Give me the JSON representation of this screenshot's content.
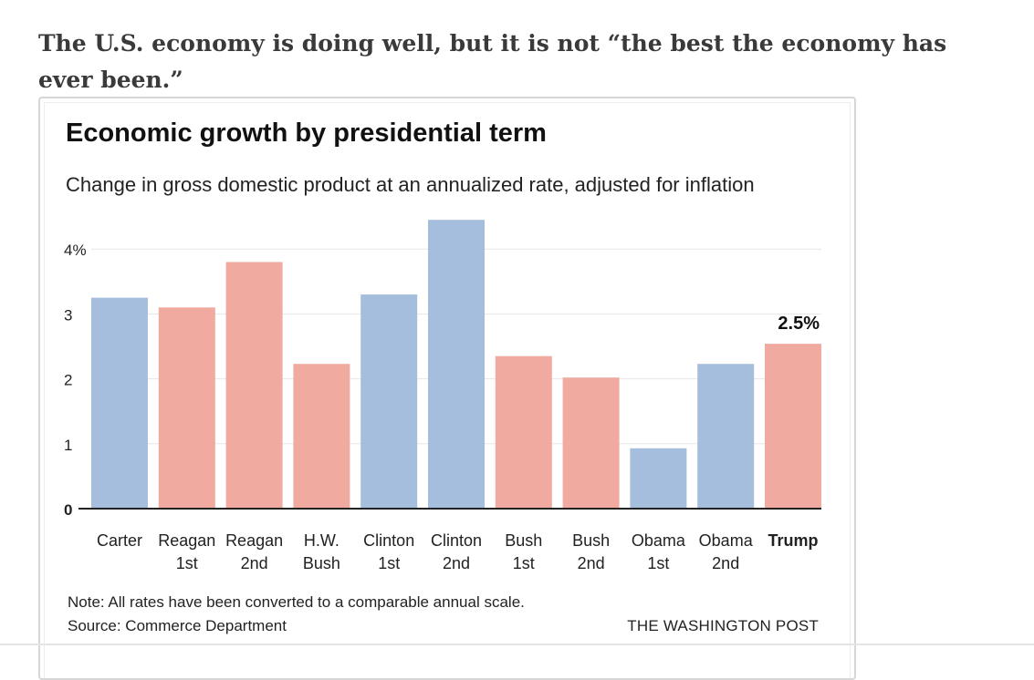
{
  "headline": "The U.S. economy is doing well, but it is not “the best the economy has ever been.”",
  "chart_data": {
    "type": "bar",
    "title": "Economic growth by presidential term",
    "subtitle": "Change in gross domestic product at an annualized rate, adjusted for inflation",
    "categories": [
      [
        "Carter"
      ],
      [
        "Reagan",
        "1st"
      ],
      [
        "Reagan",
        "2nd"
      ],
      [
        "H.W.",
        "Bush"
      ],
      [
        "Clinton",
        "1st"
      ],
      [
        "Clinton",
        "2nd"
      ],
      [
        "Bush",
        "1st"
      ],
      [
        "Bush",
        "2nd"
      ],
      [
        "Obama",
        "1st"
      ],
      [
        "Obama",
        "2nd"
      ],
      [
        "Trump"
      ]
    ],
    "values": [
      3.25,
      3.1,
      3.8,
      2.23,
      3.3,
      4.45,
      2.35,
      2.02,
      0.93,
      2.23,
      2.54
    ],
    "party_colors": [
      "#a6bedd",
      "#f0aaa0",
      "#f0aaa0",
      "#f0aaa0",
      "#a6bedd",
      "#a6bedd",
      "#f0aaa0",
      "#f0aaa0",
      "#a6bedd",
      "#a6bedd",
      "#f0aaa0"
    ],
    "highlight_index": 10,
    "highlight_label": "2.5%",
    "y_ticks": [
      "0",
      "1",
      "2",
      "3",
      "4%"
    ],
    "ylim": [
      0,
      4.5
    ],
    "grid": true,
    "note": "Note: All rates have been converted to a comparable annual scale.",
    "source": "Source: Commerce Department",
    "credit": "THE WASHINGTON POST"
  }
}
